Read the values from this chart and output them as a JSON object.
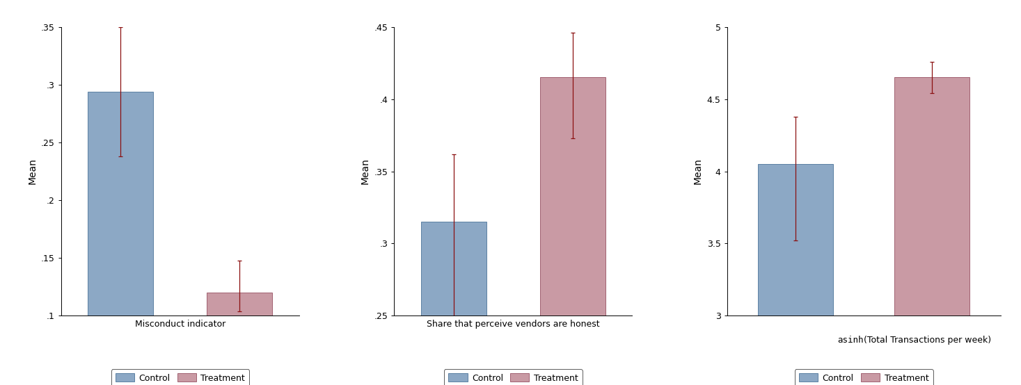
{
  "charts": [
    {
      "xlabel": "Misconduct indicator",
      "xlabel_monospace": false,
      "ylabel": "Mean",
      "ylim": [
        0.1,
        0.35
      ],
      "yticks": [
        0.1,
        0.15,
        0.2,
        0.25,
        0.3,
        0.35
      ],
      "ytick_labels": [
        ".1",
        ".15",
        ".2",
        ".25",
        ".3",
        ".35"
      ],
      "bars": [
        {
          "label": "Control",
          "value": 0.294,
          "ci_lo": 0.238,
          "ci_hi": 0.35,
          "color": "#8ca8c5",
          "edgecolor": "#5b80a3"
        },
        {
          "label": "Treatment",
          "value": 0.12,
          "ci_lo": 0.104,
          "ci_hi": 0.148,
          "color": "#c99aa4",
          "edgecolor": "#a06070"
        }
      ]
    },
    {
      "xlabel": "Share that perceive vendors are honest",
      "xlabel_monospace": false,
      "ylabel": "Mean",
      "ylim": [
        0.25,
        0.45
      ],
      "yticks": [
        0.25,
        0.3,
        0.35,
        0.4,
        0.45
      ],
      "ytick_labels": [
        ".25",
        ".3",
        ".35",
        ".4",
        ".45"
      ],
      "bars": [
        {
          "label": "Control",
          "value": 0.315,
          "ci_lo": 0.248,
          "ci_hi": 0.362,
          "color": "#8ca8c5",
          "edgecolor": "#5b80a3"
        },
        {
          "label": "Treatment",
          "value": 0.415,
          "ci_lo": 0.373,
          "ci_hi": 0.446,
          "color": "#c99aa4",
          "edgecolor": "#a06070"
        }
      ]
    },
    {
      "xlabel": "asinh(Total Transactions per week)",
      "xlabel_monospace": true,
      "ylabel": "Mean",
      "ylim": [
        3.0,
        5.0
      ],
      "yticks": [
        3.0,
        3.5,
        4.0,
        4.5,
        5.0
      ],
      "ytick_labels": [
        "3",
        "3.5",
        "4",
        "4.5",
        "5"
      ],
      "bars": [
        {
          "label": "Control",
          "value": 4.05,
          "ci_lo": 3.52,
          "ci_hi": 4.38,
          "color": "#8ca8c5",
          "edgecolor": "#5b80a3"
        },
        {
          "label": "Treatment",
          "value": 4.65,
          "ci_lo": 4.54,
          "ci_hi": 4.76,
          "color": "#c99aa4",
          "edgecolor": "#a06070"
        }
      ]
    }
  ],
  "legend_colors": [
    "#8ca8c5",
    "#c99aa4"
  ],
  "legend_edgecolors": [
    "#5b80a3",
    "#a06070"
  ],
  "errorbar_color": "#8b1010",
  "errorbar_lw": 0.9,
  "errorbar_capsize": 2.5,
  "bar_width": 0.55,
  "figure_bg": "#ffffff"
}
